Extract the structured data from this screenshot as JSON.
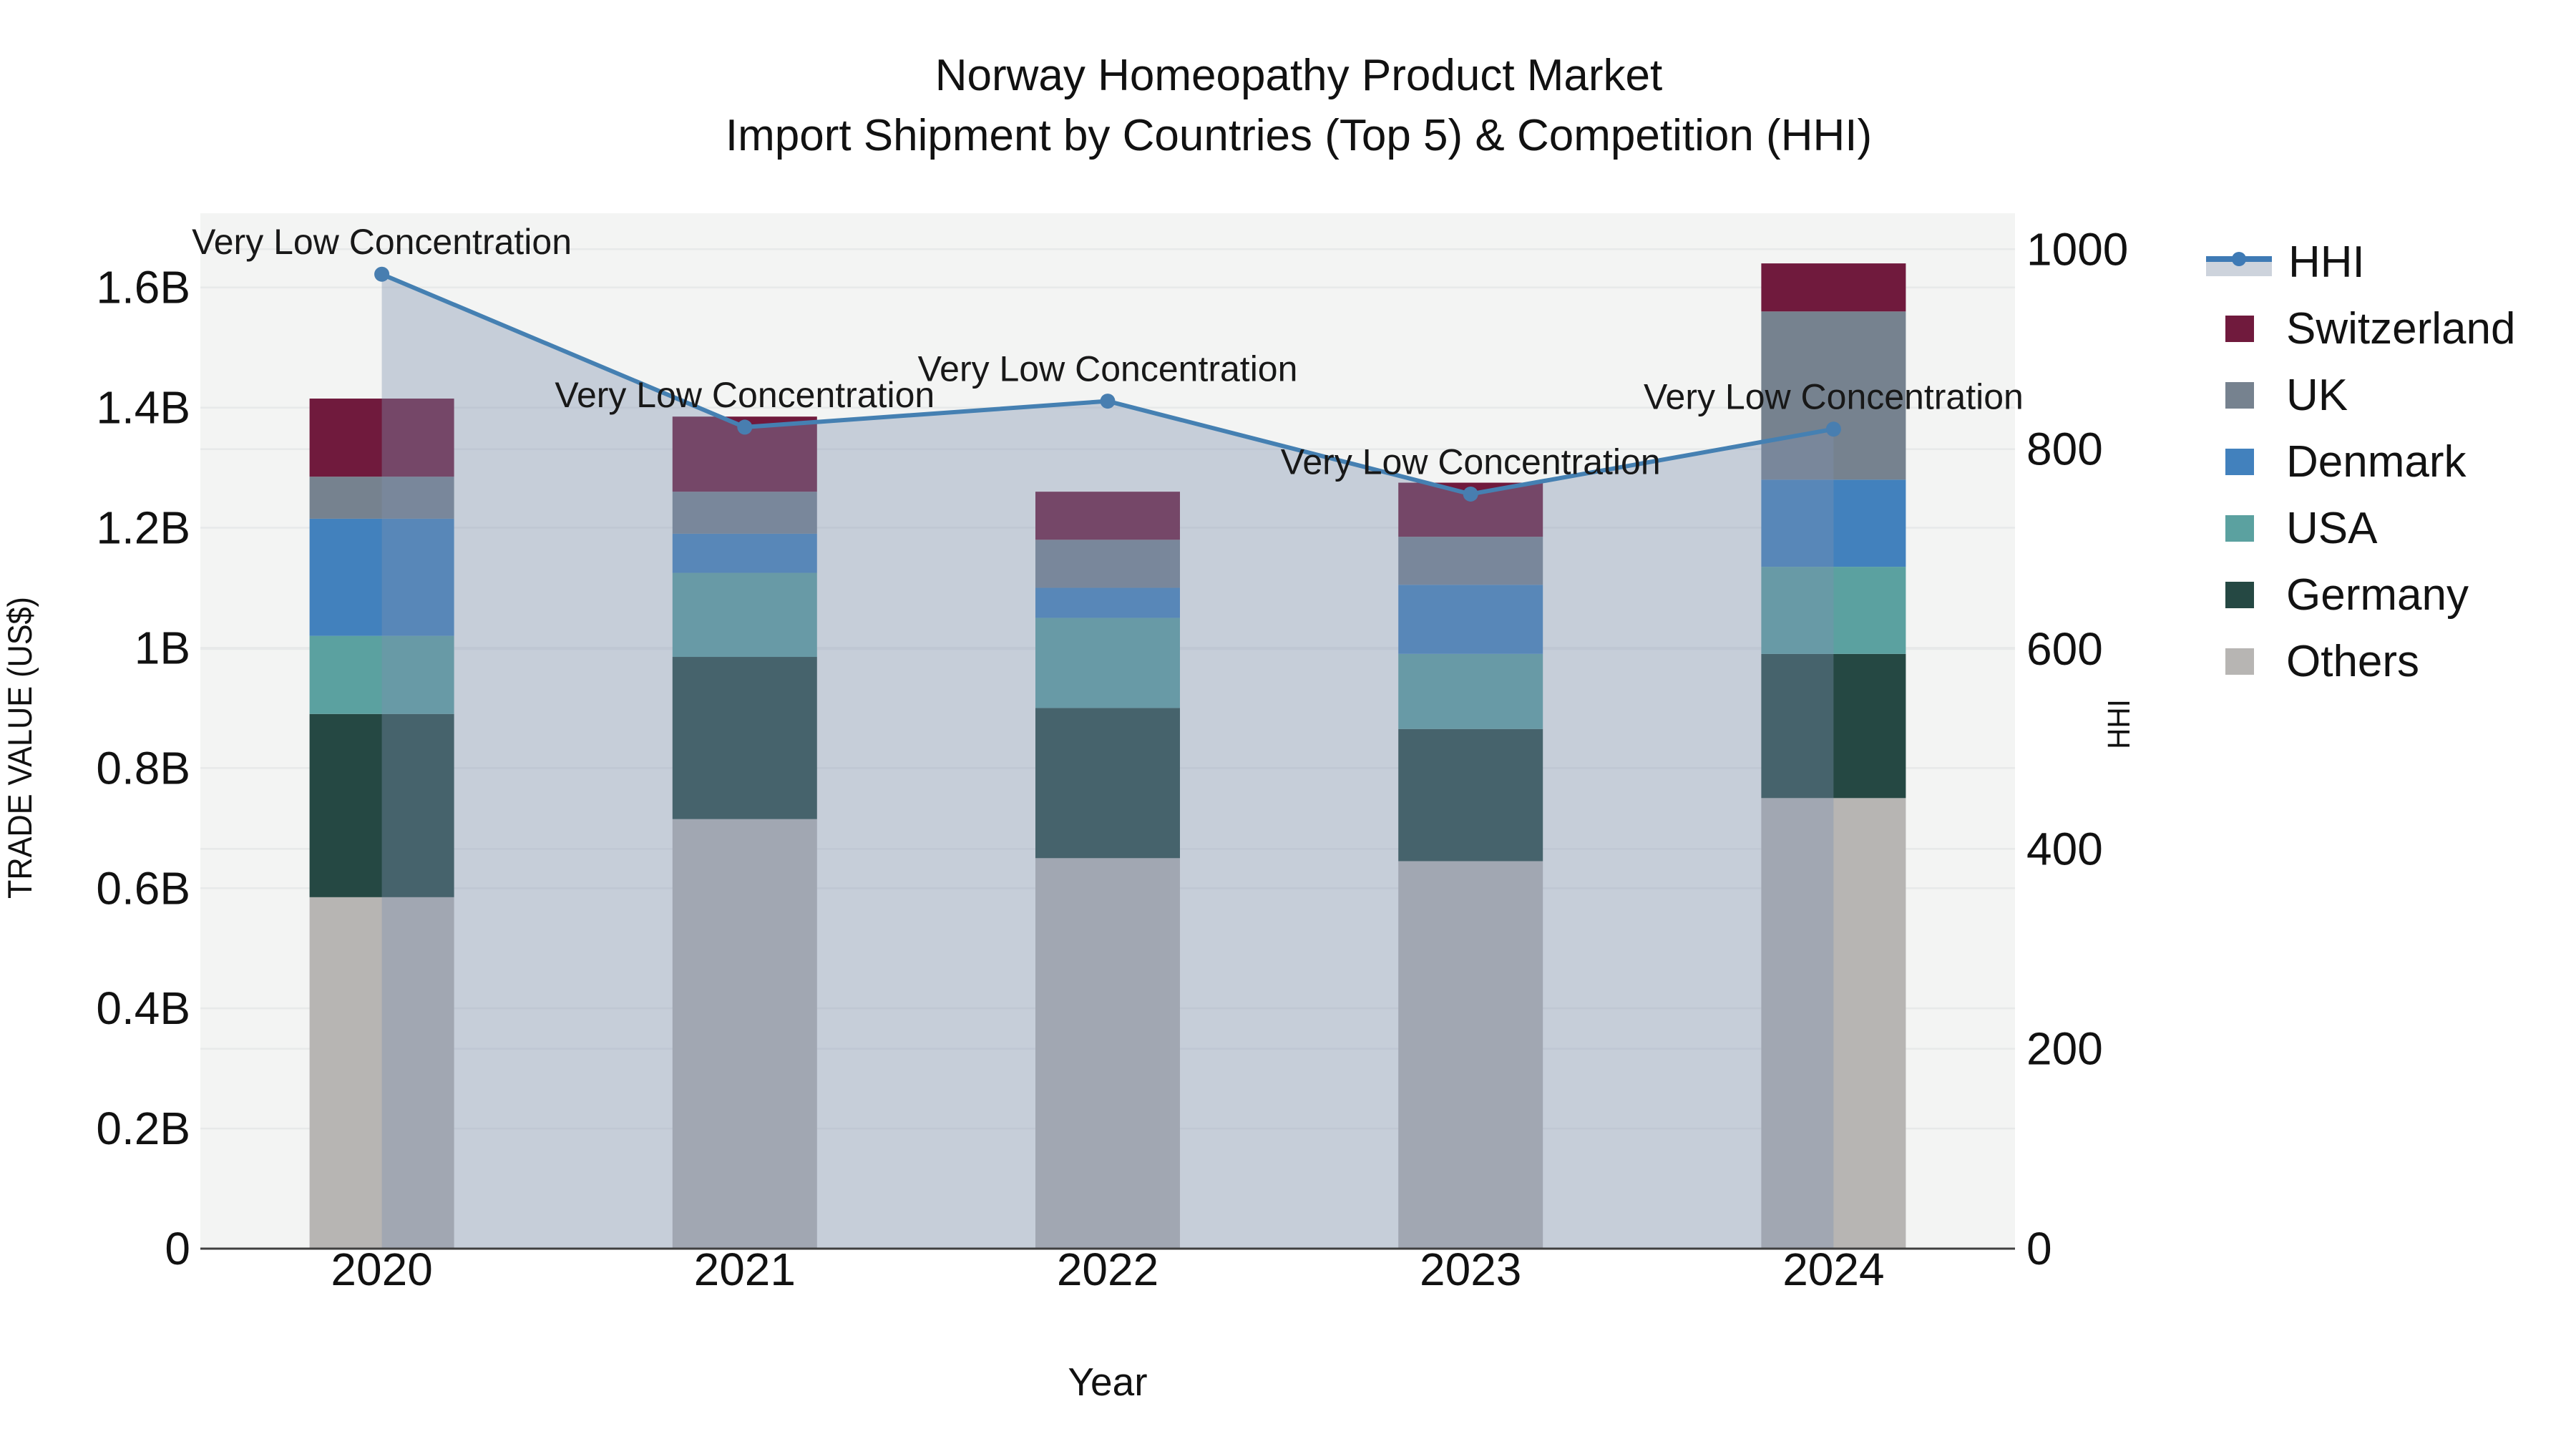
{
  "title": {
    "line1": "Norway Homeopathy Product Market",
    "line2": "Import Shipment by Countries (Top 5) & Competition (HHI)"
  },
  "axes": {
    "x": {
      "title": "Year",
      "categories": [
        "2020",
        "2021",
        "2022",
        "2023",
        "2024"
      ]
    },
    "y_left": {
      "title": "TRADE VALUE (US$)",
      "tick_labels": [
        "0",
        "0.2B",
        "0.4B",
        "0.6B",
        "0.8B",
        "1B",
        "1.2B",
        "1.4B",
        "1.6B"
      ],
      "tick_values": [
        0,
        0.2,
        0.4,
        0.6,
        0.8,
        1.0,
        1.2,
        1.4,
        1.6
      ]
    },
    "y_right": {
      "title": "HHI",
      "tick_labels": [
        "0",
        "200",
        "400",
        "600",
        "800",
        "1000"
      ],
      "tick_values": [
        0,
        200,
        400,
        600,
        800,
        1000
      ]
    }
  },
  "chart_data": {
    "type": "bar",
    "subtype": "stacked-bar-with-line",
    "categories": [
      "2020",
      "2021",
      "2022",
      "2023",
      "2024"
    ],
    "value_unit": "billion US$",
    "ylabel": "TRADE VALUE (US$)",
    "ylabel_right": "HHI",
    "xlabel": "Year",
    "y_left_range": [
      0,
      1.7235
    ],
    "y_right_range": [
      0,
      1036
    ],
    "grid": true,
    "legend_position": "right",
    "stack_order_bottom_to_top": [
      "Others",
      "Germany",
      "USA",
      "Denmark",
      "UK",
      "Switzerland"
    ],
    "series": [
      {
        "name": "Others",
        "color": "#b7b5b3",
        "values": [
          0.585,
          0.715,
          0.65,
          0.645,
          0.75
        ]
      },
      {
        "name": "Germany",
        "color": "#254843",
        "values": [
          0.305,
          0.27,
          0.25,
          0.22,
          0.24
        ]
      },
      {
        "name": "USA",
        "color": "#5ba1a0",
        "values": [
          0.13,
          0.14,
          0.15,
          0.125,
          0.145
        ]
      },
      {
        "name": "Denmark",
        "color": "#4281bd",
        "values": [
          0.195,
          0.065,
          0.05,
          0.115,
          0.145
        ]
      },
      {
        "name": "UK",
        "color": "#76828f",
        "values": [
          0.07,
          0.07,
          0.08,
          0.08,
          0.28
        ]
      },
      {
        "name": "Switzerland",
        "color": "#701a3d",
        "values": [
          0.13,
          0.125,
          0.08,
          0.09,
          0.08
        ]
      }
    ],
    "line_series": {
      "name": "HHI",
      "axis": "right",
      "color": "#4580b2",
      "marker_color": "#487eb0",
      "fill_color": "rgba(125,145,175,0.38)",
      "values": [
        975,
        822,
        848,
        755,
        820
      ]
    },
    "annotations": [
      {
        "x": "2020",
        "text": "Very Low Concentration"
      },
      {
        "x": "2021",
        "text": "Very Low Concentration"
      },
      {
        "x": "2022",
        "text": "Very Low Concentration"
      },
      {
        "x": "2023",
        "text": "Very Low Concentration"
      },
      {
        "x": "2024",
        "text": "Very Low Concentration"
      }
    ]
  },
  "legend": {
    "items": [
      {
        "label": "HHI",
        "type": "line",
        "color": "#3e7ab5",
        "band_color": "#cdd3dc"
      },
      {
        "label": "Switzerland",
        "type": "square",
        "color": "#701a3d"
      },
      {
        "label": "UK",
        "type": "square",
        "color": "#76828f"
      },
      {
        "label": "Denmark",
        "type": "square",
        "color": "#4281bd"
      },
      {
        "label": "USA",
        "type": "square",
        "color": "#5ba1a0"
      },
      {
        "label": "Germany",
        "type": "square",
        "color": "#254843"
      },
      {
        "label": "Others",
        "type": "square",
        "color": "#b7b5b3"
      }
    ]
  },
  "style": {
    "plot_bg": "#f3f4f3",
    "grid_color": "#e7e9e9",
    "axis_line_color": "#3f3f3f",
    "tick_color": "#111111",
    "annotation_color": "#181818"
  }
}
